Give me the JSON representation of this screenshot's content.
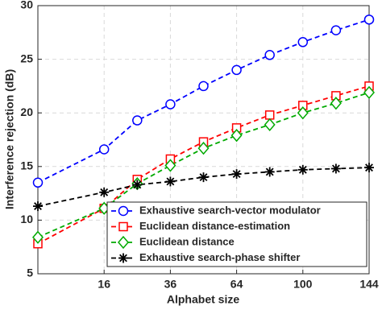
{
  "chart_data": {
    "type": "line",
    "x_label": "Alphabet size",
    "y_label": "Interference rejection (dB)",
    "x": [
      4,
      16,
      25,
      36,
      49,
      64,
      81,
      100,
      121,
      144
    ],
    "xscale": "sqrt",
    "xlim": [
      4,
      144
    ],
    "xticks": [
      16,
      36,
      64,
      100,
      144
    ],
    "ylim": [
      5,
      30
    ],
    "yticks": [
      5,
      10,
      15,
      20,
      25,
      30
    ],
    "grid": true,
    "legend": "lower right",
    "series": [
      {
        "name": "Exhaustive search-vector modulator",
        "color": "#0000ff",
        "marker": "circle",
        "values": [
          13.5,
          16.6,
          19.3,
          20.8,
          22.5,
          24.0,
          25.4,
          26.6,
          27.7,
          28.7
        ]
      },
      {
        "name": "Euclidean distance-estimation",
        "color": "#ff0000",
        "marker": "square",
        "values": [
          7.8,
          11.1,
          13.8,
          15.7,
          17.3,
          18.6,
          19.8,
          20.7,
          21.6,
          22.5
        ]
      },
      {
        "name": "Euclidean distance",
        "color": "#00aa00",
        "marker": "diamond",
        "values": [
          8.4,
          11.1,
          13.4,
          15.1,
          16.7,
          17.9,
          18.9,
          20.0,
          20.9,
          21.9
        ]
      },
      {
        "name": "Exhaustive search-phase shifter",
        "color": "#000000",
        "marker": "asterisk",
        "values": [
          11.3,
          12.6,
          13.3,
          13.6,
          14.0,
          14.3,
          14.5,
          14.7,
          14.8,
          14.9
        ]
      }
    ]
  }
}
